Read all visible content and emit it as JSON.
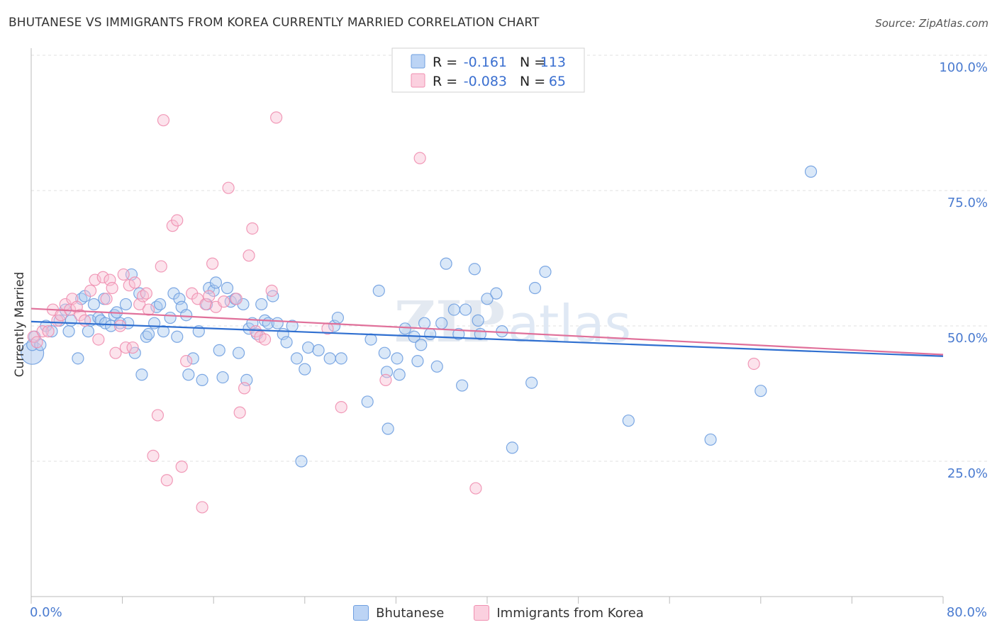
{
  "title": "BHUTANESE VS IMMIGRANTS FROM KOREA CURRENTLY MARRIED CORRELATION CHART",
  "source": "Source: ZipAtlas.com",
  "watermark": {
    "zip": "ZIP",
    "atlas": "atlas"
  },
  "chart_data": {
    "type": "scatter",
    "title": "BHUTANESE VS IMMIGRANTS FROM KOREA CURRENTLY MARRIED CORRELATION CHART",
    "xlabel": "",
    "ylabel": "Currently Married",
    "xlim": [
      0,
      80
    ],
    "ylim": [
      0,
      100
    ],
    "x_tick_labels": [
      "0.0%",
      "80.0%"
    ],
    "y_ticks": [
      25,
      50,
      75,
      100
    ],
    "y_tick_labels": [
      "25.0%",
      "50.0%",
      "75.0%",
      "100.0%"
    ],
    "grid": "horizontal dashed",
    "legend": {
      "placement": "top-center",
      "entries": [
        {
          "r_label": "R =",
          "r_value": "-0.161",
          "n_label": "N =",
          "n_value": "113"
        },
        {
          "r_label": "R =",
          "r_value": "-0.083",
          "n_label": "N =",
          "n_value": "65"
        }
      ]
    },
    "series": [
      {
        "name": "Bhutanese",
        "color": "#6f9fe0",
        "fill": "#aecbf0",
        "line_color": "#2f6fd0",
        "trend": {
          "x": [
            0,
            80
          ],
          "y": [
            50.8,
            44.4
          ]
        },
        "points": [
          [
            0.1,
            45
          ],
          [
            0.1,
            46.5
          ],
          [
            0.3,
            48
          ],
          [
            0.8,
            46.5
          ],
          [
            1.3,
            50
          ],
          [
            1.8,
            49
          ],
          [
            2.5,
            51
          ],
          [
            3.0,
            53
          ],
          [
            3.3,
            49
          ],
          [
            3.5,
            51
          ],
          [
            4.1,
            44
          ],
          [
            4.4,
            55
          ],
          [
            4.7,
            55.5
          ],
          [
            5.0,
            49
          ],
          [
            5.2,
            51
          ],
          [
            5.5,
            54
          ],
          [
            5.9,
            51.5
          ],
          [
            6.1,
            51
          ],
          [
            6.4,
            55
          ],
          [
            6.5,
            50.5
          ],
          [
            7.0,
            50
          ],
          [
            7.3,
            52
          ],
          [
            7.5,
            52.5
          ],
          [
            7.8,
            50.5
          ],
          [
            8.3,
            54
          ],
          [
            8.5,
            50.5
          ],
          [
            8.8,
            59.5
          ],
          [
            9.1,
            45
          ],
          [
            9.5,
            56
          ],
          [
            9.7,
            41
          ],
          [
            10.1,
            48
          ],
          [
            10.3,
            48.5
          ],
          [
            10.8,
            50.5
          ],
          [
            11.0,
            53.5
          ],
          [
            11.3,
            54
          ],
          [
            11.6,
            49
          ],
          [
            12.2,
            51.5
          ],
          [
            12.5,
            56
          ],
          [
            12.8,
            48
          ],
          [
            13.0,
            55
          ],
          [
            13.2,
            53.5
          ],
          [
            13.6,
            52
          ],
          [
            13.8,
            41
          ],
          [
            14.2,
            44
          ],
          [
            14.7,
            49
          ],
          [
            15.0,
            40
          ],
          [
            15.4,
            54
          ],
          [
            15.6,
            57
          ],
          [
            16.0,
            56.5
          ],
          [
            16.2,
            58
          ],
          [
            16.5,
            45.5
          ],
          [
            16.8,
            40.5
          ],
          [
            17.2,
            57
          ],
          [
            17.5,
            54.5
          ],
          [
            17.9,
            55
          ],
          [
            18.2,
            45
          ],
          [
            18.6,
            54
          ],
          [
            18.9,
            40
          ],
          [
            19.1,
            49.5
          ],
          [
            19.4,
            50.5
          ],
          [
            19.8,
            48.5
          ],
          [
            20.2,
            54
          ],
          [
            20.5,
            51
          ],
          [
            20.8,
            50.5
          ],
          [
            21.2,
            55.5
          ],
          [
            21.6,
            50.5
          ],
          [
            22.1,
            48.5
          ],
          [
            22.4,
            47
          ],
          [
            22.9,
            50
          ],
          [
            23.3,
            44
          ],
          [
            23.7,
            25
          ],
          [
            24.0,
            42
          ],
          [
            24.3,
            46
          ],
          [
            25.2,
            45.5
          ],
          [
            26.2,
            44
          ],
          [
            26.6,
            50
          ],
          [
            26.9,
            51.5
          ],
          [
            27.2,
            44
          ],
          [
            29.5,
            36
          ],
          [
            29.8,
            47.5
          ],
          [
            30.5,
            56.5
          ],
          [
            31.0,
            45
          ],
          [
            31.2,
            41.5
          ],
          [
            31.3,
            31
          ],
          [
            32.1,
            44
          ],
          [
            32.3,
            41
          ],
          [
            32.8,
            49.5
          ],
          [
            33.6,
            48
          ],
          [
            33.9,
            43.5
          ],
          [
            34.2,
            46.5
          ],
          [
            34.5,
            50.5
          ],
          [
            35.0,
            48.5
          ],
          [
            35.6,
            42.5
          ],
          [
            36.0,
            50.5
          ],
          [
            36.4,
            61.5
          ],
          [
            37.1,
            53
          ],
          [
            37.5,
            48.5
          ],
          [
            37.8,
            39
          ],
          [
            38.1,
            53
          ],
          [
            38.9,
            60.5
          ],
          [
            39.2,
            51
          ],
          [
            39.4,
            48.5
          ],
          [
            40.0,
            55
          ],
          [
            40.8,
            56
          ],
          [
            41.3,
            49
          ],
          [
            42.2,
            27.5
          ],
          [
            43.9,
            39.5
          ],
          [
            44.2,
            57
          ],
          [
            45.1,
            60
          ],
          [
            52.4,
            32.5
          ],
          [
            59.6,
            29
          ],
          [
            64.0,
            38
          ],
          [
            68.4,
            78.5
          ]
        ]
      },
      {
        "name": "Immigrants from Korea",
        "color": "#f08fb0",
        "fill": "#f8c1d4",
        "line_color": "#e0709a",
        "trend": {
          "x": [
            0,
            80
          ],
          "y": [
            53.2,
            44.7
          ]
        },
        "points": [
          [
            0.2,
            48
          ],
          [
            0.5,
            47
          ],
          [
            1.0,
            49
          ],
          [
            1.5,
            49
          ],
          [
            1.9,
            53
          ],
          [
            2.3,
            51
          ],
          [
            2.6,
            52
          ],
          [
            3.0,
            54
          ],
          [
            3.4,
            53
          ],
          [
            3.6,
            55
          ],
          [
            4.0,
            53.5
          ],
          [
            4.3,
            52
          ],
          [
            4.7,
            51
          ],
          [
            5.2,
            56.5
          ],
          [
            5.6,
            58.5
          ],
          [
            5.9,
            47.5
          ],
          [
            6.3,
            59
          ],
          [
            6.6,
            55
          ],
          [
            6.9,
            58.5
          ],
          [
            7.1,
            57
          ],
          [
            7.4,
            45
          ],
          [
            7.8,
            50
          ],
          [
            8.1,
            59.5
          ],
          [
            8.3,
            46
          ],
          [
            8.6,
            57.5
          ],
          [
            8.9,
            46
          ],
          [
            9.1,
            58
          ],
          [
            9.5,
            54
          ],
          [
            9.8,
            55.5
          ],
          [
            10.1,
            56
          ],
          [
            10.3,
            53
          ],
          [
            10.7,
            26
          ],
          [
            11.1,
            33.5
          ],
          [
            11.4,
            61
          ],
          [
            11.6,
            88
          ],
          [
            11.9,
            21.5
          ],
          [
            12.4,
            68.5
          ],
          [
            12.8,
            69.5
          ],
          [
            13.2,
            24
          ],
          [
            13.6,
            43.5
          ],
          [
            14.1,
            56
          ],
          [
            14.6,
            55
          ],
          [
            15.0,
            16.5
          ],
          [
            15.3,
            54
          ],
          [
            15.6,
            55.5
          ],
          [
            15.9,
            61.5
          ],
          [
            16.2,
            53.5
          ],
          [
            16.9,
            54.5
          ],
          [
            17.3,
            75.5
          ],
          [
            18.0,
            55
          ],
          [
            18.3,
            34
          ],
          [
            18.7,
            38.5
          ],
          [
            19.1,
            63
          ],
          [
            19.4,
            68
          ],
          [
            19.7,
            49
          ],
          [
            20.1,
            48
          ],
          [
            20.5,
            47.5
          ],
          [
            21.1,
            56.5
          ],
          [
            21.5,
            88.5
          ],
          [
            26.0,
            49.5
          ],
          [
            27.2,
            35
          ],
          [
            31.1,
            40
          ],
          [
            34.1,
            81
          ],
          [
            39.0,
            20
          ],
          [
            63.4,
            43
          ]
        ]
      }
    ]
  },
  "bottom_legend": [
    {
      "label": "Bhutanese",
      "fill": "#bcd4f5",
      "border": "#6f9fe0"
    },
    {
      "label": "Immigrants from Korea",
      "fill": "#fbd0df",
      "border": "#f08fb0"
    }
  ]
}
